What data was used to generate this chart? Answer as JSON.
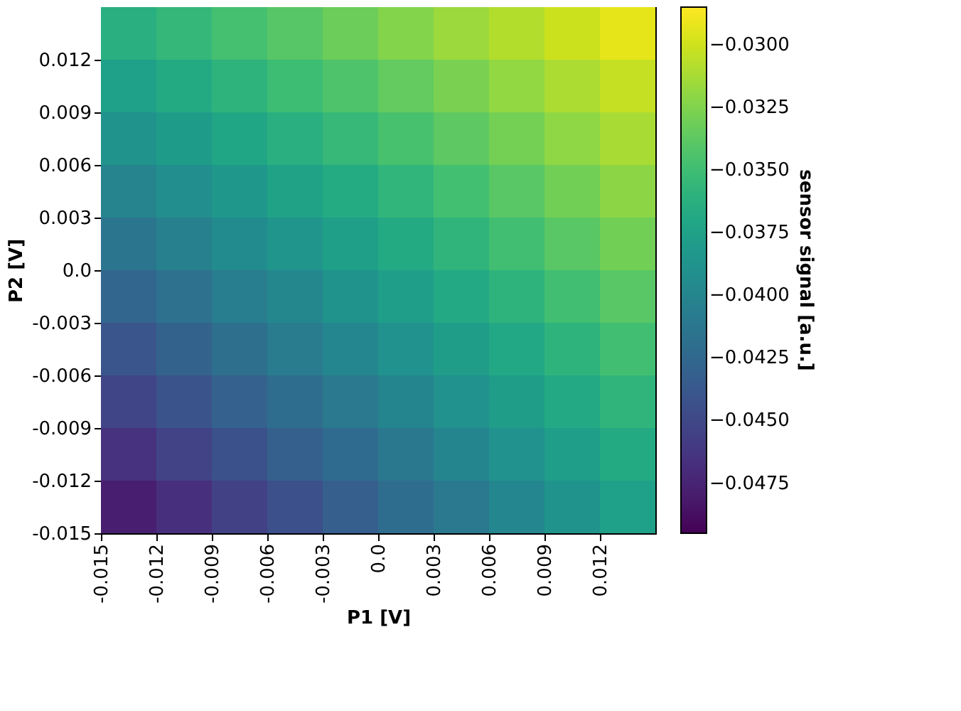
{
  "chart_data": {
    "type": "heatmap",
    "xlabel": "P1 [V]",
    "ylabel": "P2 [V]",
    "clabel": "sensor signal [a.u.]",
    "x": [
      -0.0135,
      -0.0105,
      -0.0075,
      -0.0045,
      -0.0015,
      0.0015,
      0.0045,
      0.0075,
      0.0105,
      0.0135
    ],
    "y": [
      0.0135,
      0.0105,
      0.0075,
      0.0045,
      0.0015,
      -0.0015,
      -0.0045,
      -0.0075,
      -0.0105,
      -0.0135
    ],
    "cells": [
      [
        -0.0363,
        -0.0355,
        -0.0347,
        -0.034,
        -0.0332,
        -0.0324,
        -0.0316,
        -0.0309,
        -0.0301,
        -0.0293
      ],
      [
        -0.0376,
        -0.0367,
        -0.0359,
        -0.0351,
        -0.0343,
        -0.0335,
        -0.0327,
        -0.0319,
        -0.0311,
        -0.0303
      ],
      [
        -0.0388,
        -0.038,
        -0.0371,
        -0.0363,
        -0.0354,
        -0.0346,
        -0.0337,
        -0.0329,
        -0.032,
        -0.0312
      ],
      [
        -0.0401,
        -0.0392,
        -0.0383,
        -0.0374,
        -0.0366,
        -0.0357,
        -0.0348,
        -0.0339,
        -0.033,
        -0.0321
      ],
      [
        -0.0414,
        -0.0405,
        -0.0395,
        -0.0386,
        -0.0377,
        -0.0367,
        -0.0358,
        -0.0349,
        -0.0339,
        -0.033
      ],
      [
        -0.0427,
        -0.0417,
        -0.0407,
        -0.0398,
        -0.0388,
        -0.0378,
        -0.0368,
        -0.0359,
        -0.0349,
        -0.0339
      ],
      [
        -0.044,
        -0.0429,
        -0.0419,
        -0.0409,
        -0.0399,
        -0.0389,
        -0.0379,
        -0.0369,
        -0.0359,
        -0.0349
      ],
      [
        -0.0452,
        -0.0442,
        -0.0431,
        -0.0421,
        -0.041,
        -0.04,
        -0.0389,
        -0.0379,
        -0.0368,
        -0.0358
      ],
      [
        -0.0465,
        -0.0454,
        -0.0443,
        -0.0432,
        -0.0422,
        -0.0411,
        -0.04,
        -0.0389,
        -0.0378,
        -0.0367
      ],
      [
        -0.0478,
        -0.0467,
        -0.0455,
        -0.0444,
        -0.0433,
        -0.0421,
        -0.041,
        -0.0399,
        -0.0387,
        -0.0376
      ]
    ],
    "xlim": [
      -0.015,
      0.015
    ],
    "ylim": [
      -0.015,
      0.015
    ],
    "xticks": [
      {
        "value": -0.015,
        "label": "-0.015"
      },
      {
        "value": -0.012,
        "label": "-0.012"
      },
      {
        "value": -0.009,
        "label": "-0.009"
      },
      {
        "value": -0.006,
        "label": "-0.006"
      },
      {
        "value": -0.003,
        "label": "-0.003"
      },
      {
        "value": 0,
        "label": "0.0"
      },
      {
        "value": 0.003,
        "label": "0.003"
      },
      {
        "value": 0.006,
        "label": "0.006"
      },
      {
        "value": 0.009,
        "label": "0.009"
      },
      {
        "value": 0.012,
        "label": "0.012"
      }
    ],
    "yticks": [
      {
        "value": -0.015,
        "label": "-0.015"
      },
      {
        "value": -0.012,
        "label": "-0.012"
      },
      {
        "value": -0.009,
        "label": "-0.009"
      },
      {
        "value": -0.006,
        "label": "-0.006"
      },
      {
        "value": -0.003,
        "label": "-0.003"
      },
      {
        "value": 0,
        "label": "0.0"
      },
      {
        "value": 0.003,
        "label": "0.003"
      },
      {
        "value": 0.006,
        "label": "0.006"
      },
      {
        "value": 0.009,
        "label": "0.009"
      },
      {
        "value": 0.012,
        "label": "0.012"
      }
    ],
    "clim": [
      -0.0495,
      -0.0285
    ],
    "cticks": [
      {
        "value": -0.0475,
        "label": "−0.0475"
      },
      {
        "value": -0.045,
        "label": "−0.0450"
      },
      {
        "value": -0.0425,
        "label": "−0.0425"
      },
      {
        "value": -0.04,
        "label": "−0.0400"
      },
      {
        "value": -0.0375,
        "label": "−0.0375"
      },
      {
        "value": -0.035,
        "label": "−0.0350"
      },
      {
        "value": -0.0325,
        "label": "−0.0325"
      },
      {
        "value": -0.03,
        "label": "−0.0300"
      }
    ],
    "grid": false
  }
}
